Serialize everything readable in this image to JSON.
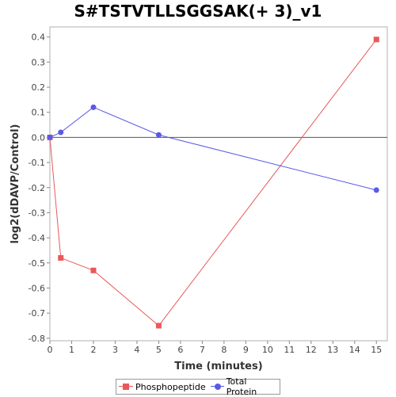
{
  "chart_data": {
    "type": "line",
    "title": "S#TSTVTLLSGGSAK(+ 3)_v1",
    "xlabel": "Time (minutes)",
    "ylabel": "log2(dDAVP/Control)",
    "xlim": [
      0,
      15.5
    ],
    "ylim": [
      -0.81,
      0.44
    ],
    "xticks": [
      0,
      1,
      2,
      3,
      4,
      5,
      6,
      7,
      8,
      9,
      10,
      11,
      12,
      13,
      14,
      15
    ],
    "yticks": [
      0.4,
      0.3,
      0.2,
      0.1,
      0.0,
      -0.1,
      -0.2,
      -0.3,
      -0.4,
      -0.5,
      -0.6,
      -0.7,
      -0.8
    ],
    "ytick_labels": [
      "0.4",
      "0.3",
      "0.2",
      "0.1",
      "0.0",
      "-0.1",
      "-0.2",
      "-0.3",
      "-0.4",
      "-0.5",
      "-0.6",
      "-0.7",
      "-0.8"
    ],
    "zero_line": true,
    "grid": false,
    "legend_position": "bottom",
    "series": [
      {
        "name": "Phosphopeptide",
        "color": "#e8595a",
        "marker": "square",
        "x": [
          0,
          0.5,
          2,
          5,
          15
        ],
        "values": [
          0.0,
          -0.48,
          -0.53,
          -0.75,
          0.39
        ]
      },
      {
        "name": "Total Protein",
        "color": "#5a5ae8",
        "marker": "circle",
        "x": [
          0,
          0.5,
          2,
          5,
          15
        ],
        "values": [
          0.0,
          0.02,
          0.12,
          0.01,
          -0.21
        ]
      }
    ]
  }
}
